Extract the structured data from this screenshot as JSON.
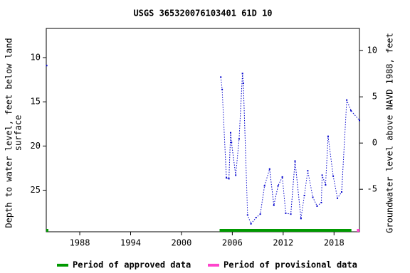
{
  "chart_data": {
    "type": "line",
    "title": "USGS 365320076103401 61D 10",
    "ylabel": [
      "Depth to water level, feet below land",
      "surface"
    ],
    "y2label": "Groundwater level above NAVD 1988, feet",
    "x": [
      1984.1,
      null,
      2004.64,
      2004.8,
      2005.3,
      2005.6,
      2005.8,
      2005.9,
      2006.4,
      2006.8,
      2007.2,
      2007.3,
      2007.8,
      2008.2,
      2008.8,
      2009.3,
      2009.8,
      2010.4,
      2010.9,
      2011.4,
      2011.9,
      2012.3,
      2012.9,
      2013.4,
      2014.1,
      2014.5,
      2014.9,
      2015.5,
      2016.0,
      2016.5,
      2016.6,
      2017.0,
      2017.3,
      2017.9,
      2018.4,
      2018.9,
      2019.5,
      2020.0,
      2021.0
    ],
    "series": [
      {
        "color": "#0000cc",
        "values": [
          10.9,
          null,
          12.2,
          13.6,
          23.6,
          23.7,
          18.5,
          19.6,
          23.3,
          19.2,
          11.8,
          12.9,
          27.8,
          28.8,
          28.1,
          27.7,
          24.5,
          22.6,
          26.7,
          24.5,
          23.5,
          27.6,
          27.7,
          21.7,
          28.2,
          25.6,
          22.8,
          25.8,
          26.8,
          26.4,
          23.3,
          24.4,
          18.9,
          23.4,
          25.9,
          25.2,
          14.8,
          16.0,
          17.1
        ]
      }
    ],
    "xlim": [
      1984.05,
      2021.0
    ],
    "xticks": [
      1988,
      1994,
      2000,
      2006,
      2012,
      2018
    ],
    "ylim": [
      6.7,
      29.7
    ],
    "y_inverted": true,
    "yticks": [
      10,
      15,
      20,
      25
    ],
    "y2lim": [
      -9.6,
      12.4
    ],
    "y2ticks": [
      -5,
      0,
      5,
      10
    ],
    "periods": [
      {
        "name": "Period of approved data",
        "color": "#009900",
        "spans": [
          [
            1984.05,
            1984.3
          ],
          [
            2004.5,
            2020.05
          ]
        ]
      },
      {
        "name": "Period of provisional data",
        "color": "#ff44cc",
        "spans": [
          [
            2020.7,
            2021.0
          ]
        ]
      }
    ]
  }
}
